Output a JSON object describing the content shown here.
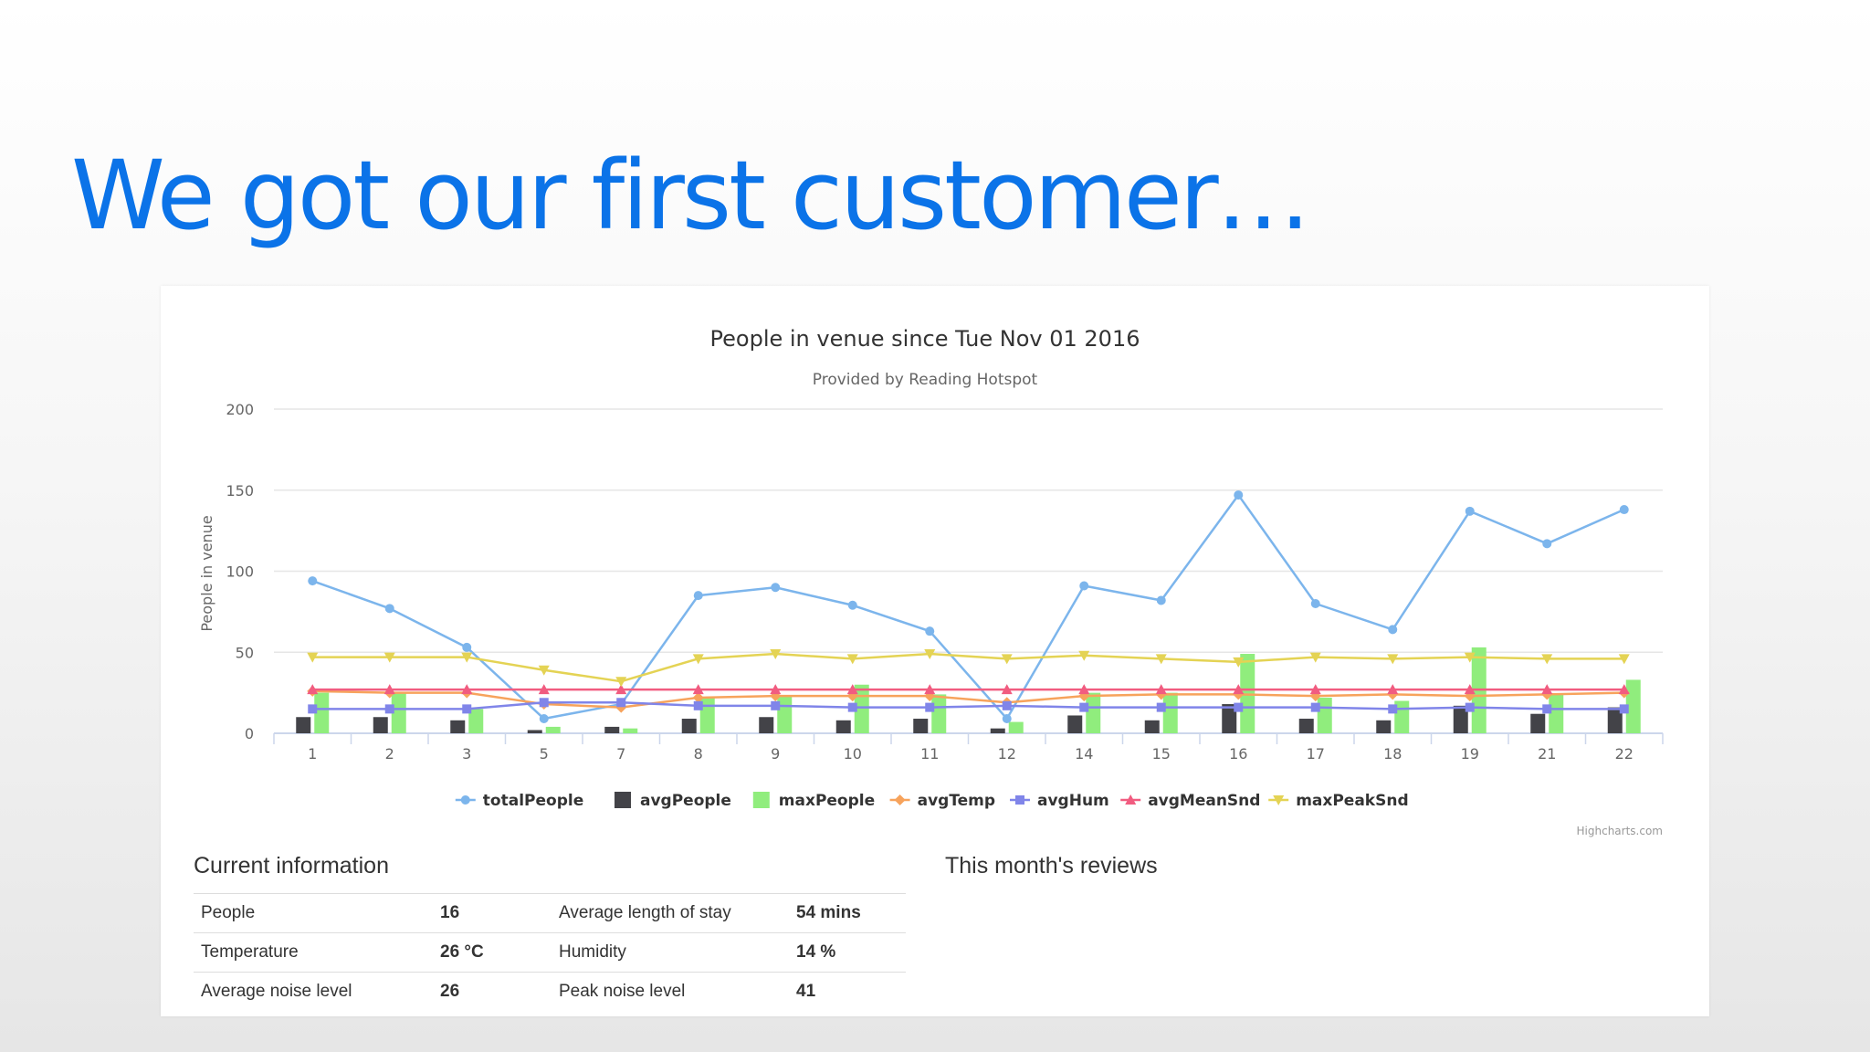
{
  "slide": {
    "title": "We got our first customer…"
  },
  "credits": "Highcharts.com",
  "chart_data": {
    "type": "line",
    "title": "People in venue since Tue Nov 01 2016",
    "subtitle": "Provided by Reading Hotspot",
    "ylabel": "People in venue",
    "xlabel": "",
    "ylim": [
      0,
      200
    ],
    "yticks": [
      0,
      50,
      100,
      150,
      200
    ],
    "grid": true,
    "legend_position": "bottom",
    "categories": [
      "1",
      "2",
      "3",
      "5",
      "7",
      "8",
      "9",
      "10",
      "11",
      "12",
      "14",
      "15",
      "16",
      "17",
      "18",
      "19",
      "21",
      "22"
    ],
    "series": [
      {
        "name": "totalPeople",
        "kind": "line",
        "marker": "circle",
        "color": "#7cb5ec",
        "values": [
          94,
          77,
          53,
          9,
          18,
          85,
          90,
          79,
          63,
          9,
          91,
          82,
          147,
          80,
          64,
          137,
          117,
          138
        ]
      },
      {
        "name": "avgPeople",
        "kind": "column",
        "color": "#434348",
        "values": [
          10,
          10,
          8,
          2,
          4,
          9,
          10,
          8,
          9,
          3,
          11,
          8,
          18,
          9,
          8,
          17,
          12,
          16
        ]
      },
      {
        "name": "maxPeople",
        "kind": "column",
        "color": "#90ed7d",
        "values": [
          25,
          25,
          15,
          4,
          3,
          22,
          23,
          30,
          24,
          7,
          25,
          25,
          49,
          22,
          20,
          53,
          24,
          33
        ]
      },
      {
        "name": "avgTemp",
        "kind": "line",
        "marker": "diamond",
        "color": "#f7a35c",
        "values": [
          26,
          25,
          25,
          18,
          16,
          22,
          23,
          23,
          23,
          19,
          23,
          24,
          24,
          23,
          24,
          23,
          24,
          25
        ]
      },
      {
        "name": "avgHum",
        "kind": "line",
        "marker": "square",
        "color": "#8085e9",
        "values": [
          15,
          15,
          15,
          19,
          19,
          17,
          17,
          16,
          16,
          17,
          16,
          16,
          16,
          16,
          15,
          16,
          15,
          15
        ]
      },
      {
        "name": "avgMeanSnd",
        "kind": "line",
        "marker": "triangle",
        "color": "#f15c80",
        "values": [
          27,
          27,
          27,
          27,
          27,
          27,
          27,
          27,
          27,
          27,
          27,
          27,
          27,
          27,
          27,
          27,
          27,
          27
        ]
      },
      {
        "name": "maxPeakSnd",
        "kind": "line",
        "marker": "triangle-down",
        "color": "#e4d354",
        "values": [
          47,
          47,
          47,
          39,
          32,
          46,
          49,
          46,
          49,
          46,
          48,
          46,
          44,
          47,
          46,
          47,
          46,
          46
        ]
      }
    ]
  },
  "current_info": {
    "title": "Current information",
    "rows": [
      [
        "People",
        "16",
        "Average length of stay",
        "54 mins"
      ],
      [
        "Temperature",
        "26 °C",
        "Humidity",
        "14 %"
      ],
      [
        "Average noise level",
        "26",
        "Peak noise level",
        "41"
      ]
    ]
  },
  "reviews": {
    "title": "This month's reviews"
  }
}
